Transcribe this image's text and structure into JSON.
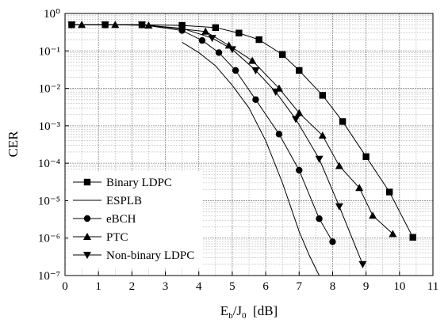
{
  "chart_data": {
    "type": "line",
    "y_label": "CER",
    "x_label": [
      "E",
      "b",
      "/J",
      "0",
      "  [dB]"
    ],
    "xlim": [
      0,
      11
    ],
    "xticks": [
      0,
      1,
      2,
      3,
      4,
      5,
      6,
      7,
      8,
      9,
      10,
      11
    ],
    "ylim": [
      1e-07,
      1
    ],
    "yticks": [
      {
        "value": 1e-07,
        "label": "10⁻⁷"
      },
      {
        "value": 1e-06,
        "label": "10⁻⁶"
      },
      {
        "value": 1e-05,
        "label": "10⁻⁵"
      },
      {
        "value": 0.0001,
        "label": "10⁻⁴"
      },
      {
        "value": 0.001,
        "label": "10⁻³"
      },
      {
        "value": 0.01,
        "label": "10⁻²"
      },
      {
        "value": 0.1,
        "label": "10⁻¹"
      },
      {
        "value": 1,
        "label": "10⁰"
      }
    ],
    "log_y": true,
    "grid": true,
    "legend": "lower left",
    "series": [
      {
        "name": "Binary LDPC",
        "color": "#000000",
        "marker": "square",
        "x": [
          0.2,
          1.2,
          2.3,
          3.5,
          4.5,
          5.2,
          5.8,
          6.5,
          7.0,
          7.7,
          8.3,
          9.0,
          9.7,
          10.4
        ],
        "values": [
          0.5,
          0.5,
          0.5,
          0.48,
          0.42,
          0.3,
          0.2,
          0.08,
          0.03,
          0.0065,
          0.0013,
          0.00015,
          1.7e-05,
          1.05e-06
        ]
      },
      {
        "name": "ESPLB",
        "color": "#000000",
        "marker": "none",
        "x": [
          3.5,
          4.0,
          4.5,
          5.0,
          5.5,
          6.0,
          6.5,
          7.0,
          7.3,
          7.6
        ],
        "values": [
          0.17,
          0.09,
          0.04,
          0.012,
          0.003,
          0.0004,
          3e-05,
          1.5e-06,
          3.5e-07,
          1e-07
        ]
      },
      {
        "name": "eBCH",
        "color": "#000000",
        "marker": "circle",
        "x": [
          0.2,
          1.2,
          2.3,
          3.5,
          4.1,
          4.6,
          5.1,
          5.7,
          6.4,
          7.0,
          7.6,
          8.0
        ],
        "values": [
          0.5,
          0.5,
          0.5,
          0.35,
          0.19,
          0.09,
          0.03,
          0.005,
          0.0006,
          6.5e-05,
          3.3e-06,
          8e-07
        ]
      },
      {
        "name": "PTC",
        "color": "#000000",
        "marker": "triangle-up",
        "x": [
          0.5,
          1.5,
          2.5,
          4.2,
          4.9,
          5.6,
          6.4,
          7.0,
          7.7,
          8.2,
          8.8,
          9.2,
          9.8
        ],
        "values": [
          0.5,
          0.5,
          0.48,
          0.33,
          0.14,
          0.055,
          0.01,
          0.0022,
          0.00055,
          8.5e-05,
          2.2e-05,
          4e-06,
          1.3e-06
        ]
      },
      {
        "name": "Non-binary LDPC",
        "color": "#000000",
        "marker": "triangle-down",
        "x": [
          0.2,
          1.2,
          2.3,
          3.5,
          4.4,
          5.0,
          5.7,
          6.3,
          6.9,
          7.6,
          8.2,
          8.9
        ],
        "values": [
          0.5,
          0.5,
          0.5,
          0.4,
          0.22,
          0.11,
          0.03,
          0.008,
          0.0015,
          0.00013,
          7e-06,
          2e-07
        ]
      }
    ]
  }
}
